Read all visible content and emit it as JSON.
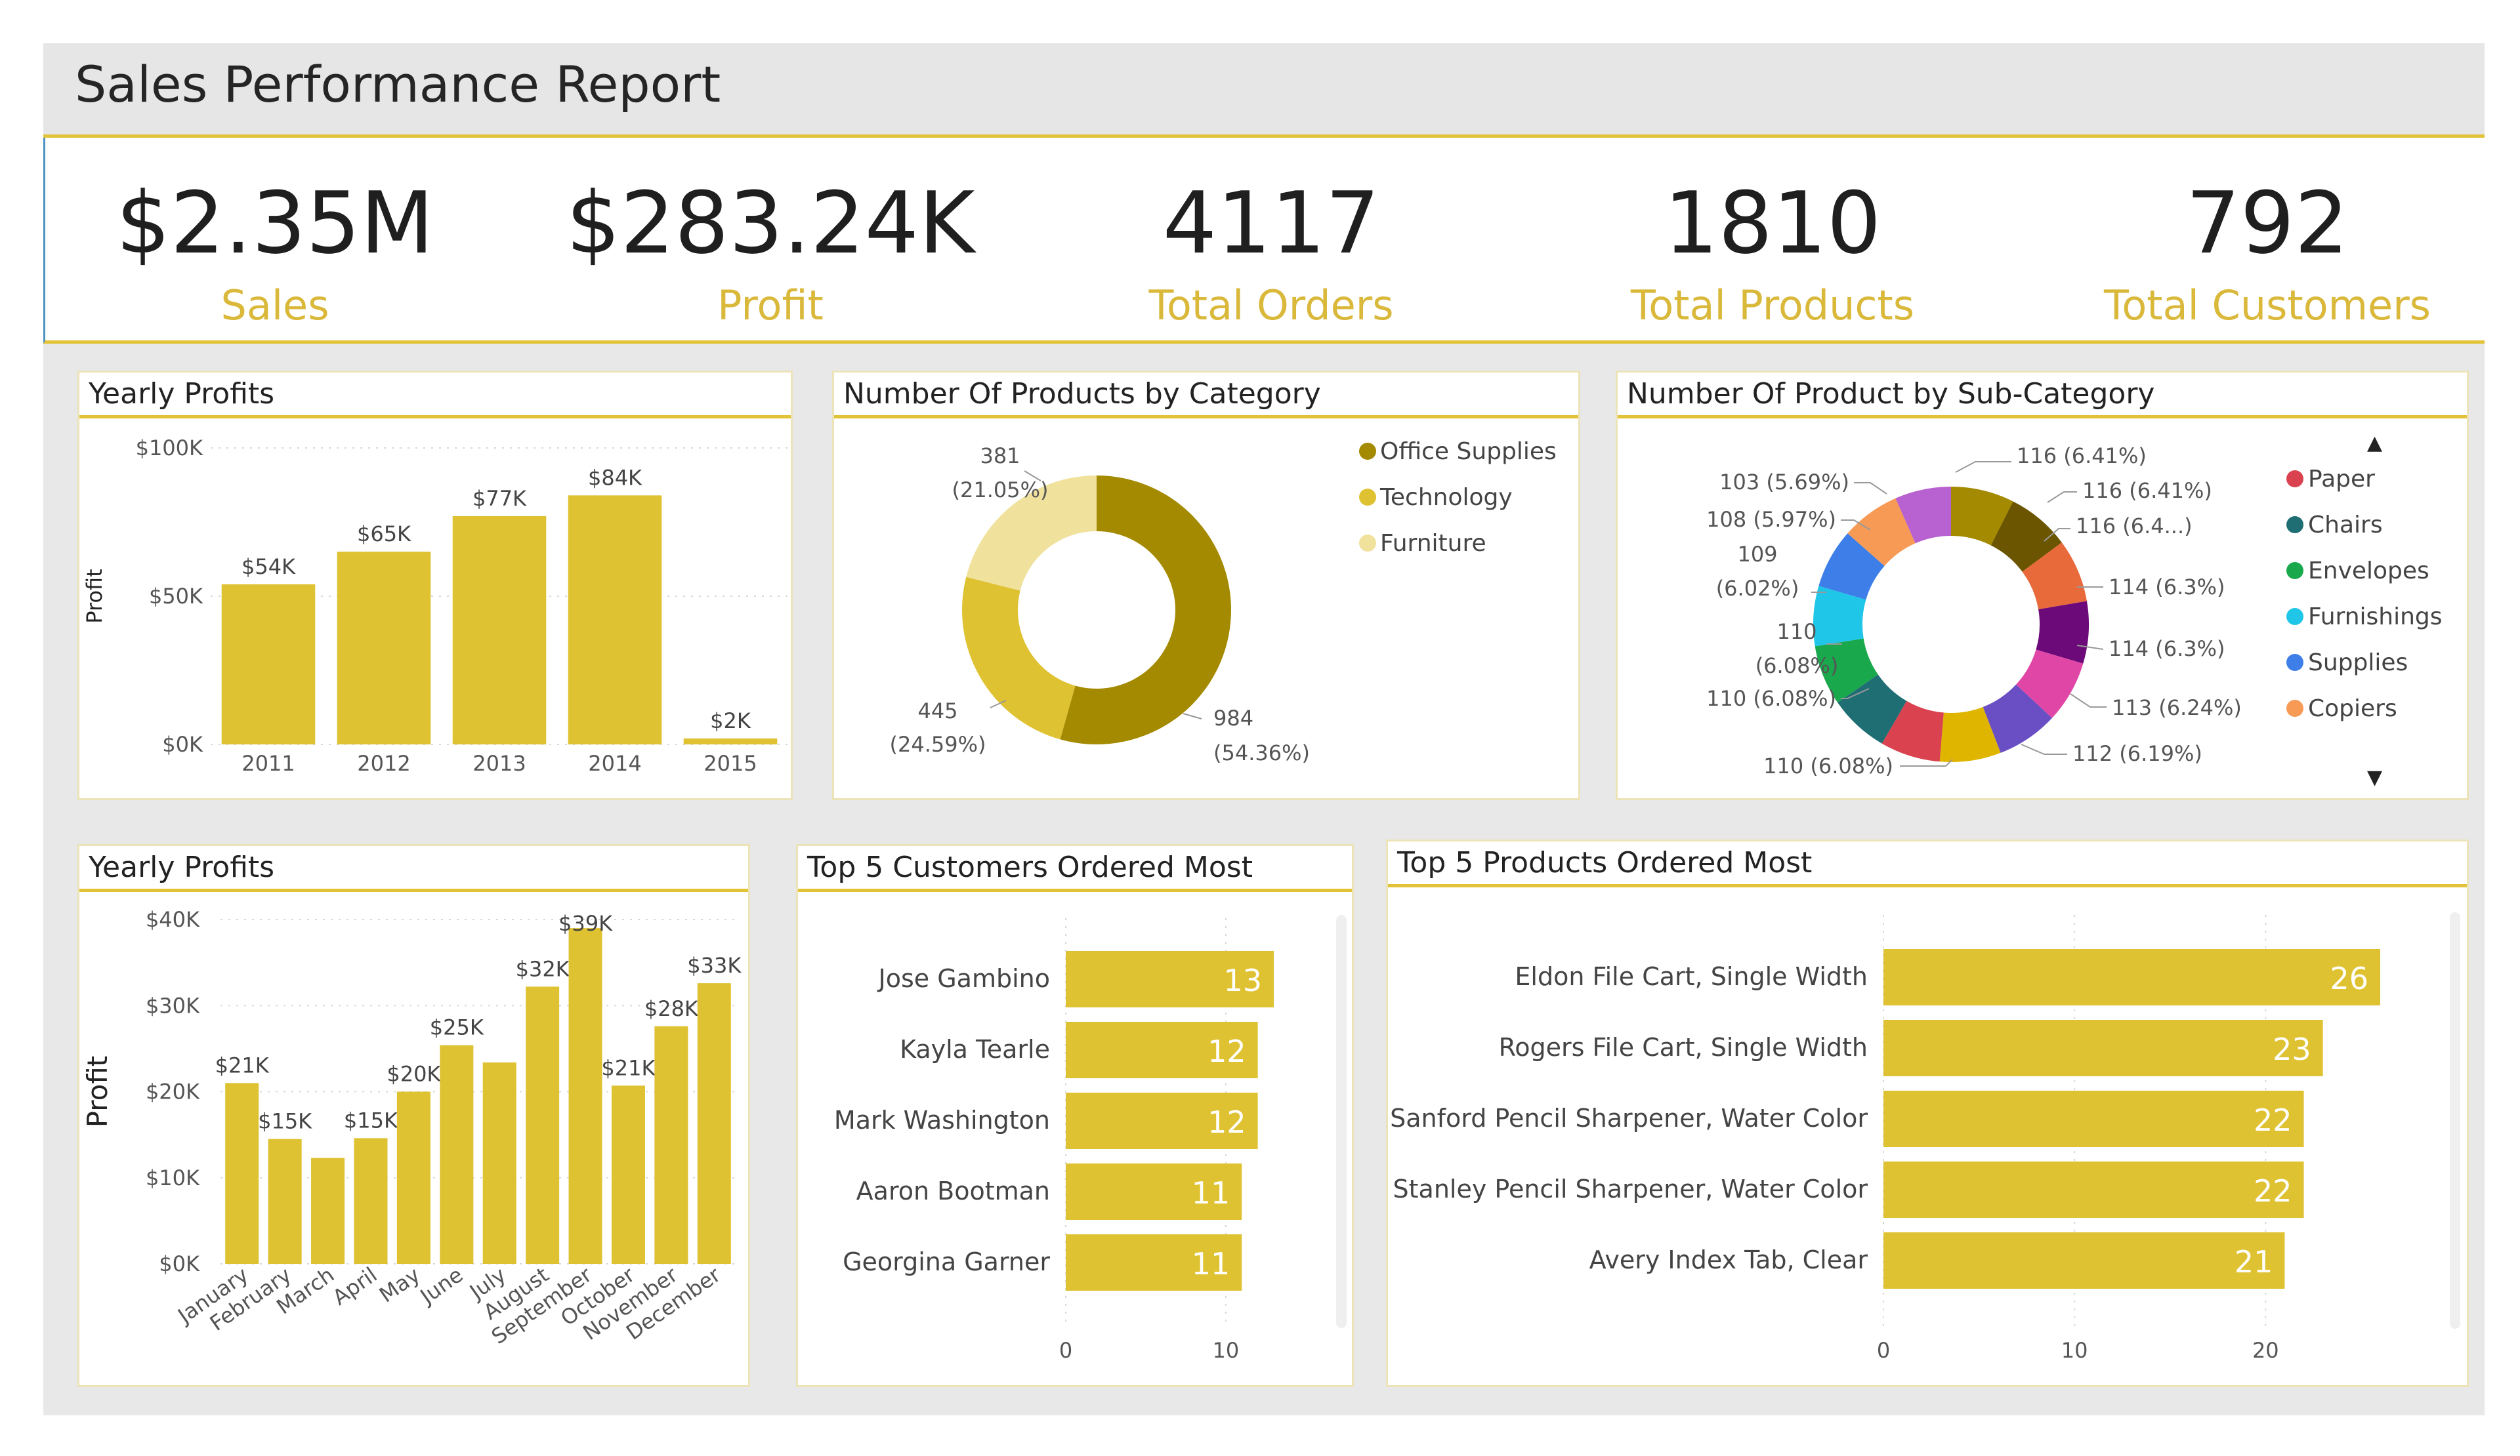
{
  "report_title": "Sales Performance Report",
  "kpis": [
    {
      "value": "$2.35M",
      "label": "Sales"
    },
    {
      "value": "$283.24K",
      "label": "Profit"
    },
    {
      "value": "4117",
      "label": "Total Orders"
    },
    {
      "value": "1810",
      "label": "Total Products"
    },
    {
      "value": "792",
      "label": "Total Customers"
    }
  ],
  "colors": {
    "gold": "#dfc232",
    "dark_gold": "#a48a00",
    "light_gold": "#f0e29c",
    "accent_line": "#e2c337"
  },
  "panels": {
    "yearly_title": "Yearly Profits",
    "category_title": "Number Of Products by Category",
    "subcat_title": "Number Of Product by Sub-Category",
    "monthly_title": "Yearly Profits",
    "customers_title": "Top 5 Customers Ordered Most",
    "products_title": "Top 5 Products Ordered Most"
  },
  "chart_data": [
    {
      "id": "yearly",
      "type": "bar",
      "title": "Yearly Profits",
      "categories": [
        "2011",
        "2012",
        "2013",
        "2014",
        "2015"
      ],
      "values": [
        54,
        65,
        77,
        84,
        2
      ],
      "data_labels": [
        "$54K",
        "$65K",
        "$77K",
        "$84K",
        "$2K"
      ],
      "ylabel": "Profit",
      "yticks": [
        "$0K",
        "$50K",
        "$100K"
      ],
      "ytick_values": [
        0,
        50,
        100
      ],
      "ylim": [
        0,
        100
      ]
    },
    {
      "id": "category",
      "type": "pie",
      "title": "Number Of Products by Category",
      "labels": [
        "Office Supplies",
        "Technology",
        "Furniture"
      ],
      "values": [
        984,
        445,
        381
      ],
      "label_value": [
        "984",
        "445",
        "381"
      ],
      "label_pct": [
        "(54.36%)",
        "(24.59%)",
        "(21.05%)"
      ],
      "colors": [
        "#a48a00",
        "#dfc232",
        "#f0e29c"
      ],
      "legend": [
        "Office Supplies",
        "Technology",
        "Furniture"
      ]
    },
    {
      "id": "subcategory",
      "type": "pie",
      "title": "Number Of Product by Sub-Category",
      "values": [
        116,
        116,
        116,
        114,
        114,
        113,
        112,
        110,
        110,
        110,
        110,
        109,
        108,
        103
      ],
      "labels": [
        "116 (6.41%)",
        "116 (6.41%)",
        "116 (6.4...)",
        "114 (6.3%)",
        "114 (6.3%)",
        "113 (6.24%)",
        "112 (6.19%)",
        "110 (6.08%)",
        "",
        "110 (6.08%)",
        "110",
        "109",
        "108 (5.97%)",
        "103 (5.69%)"
      ],
      "label_second_lines": {
        "10": "(6.08%)",
        "11": "(6.02%)"
      },
      "colors": [
        "#a48a00",
        "#6b5500",
        "#e8693a",
        "#6c0a7a",
        "#e046a6",
        "#6a4fc4",
        "#dfb500",
        "#d9424e",
        "#1f6e73",
        "#1aa84c",
        "#1fc6e8",
        "#3d7ee8",
        "#f79a55",
        "#b861d0",
        "#ec68c8",
        "#b9a4ec"
      ],
      "legend": [
        "Paper",
        "Chairs",
        "Envelopes",
        "Furnishings",
        "Supplies",
        "Copiers"
      ],
      "legend_colors": [
        "#d9424e",
        "#1f6e73",
        "#1aa84c",
        "#1fc6e8",
        "#3d7ee8",
        "#f79a55"
      ]
    },
    {
      "id": "monthly",
      "type": "bar",
      "title": "Yearly Profits",
      "categories": [
        "January",
        "February",
        "March",
        "April",
        "May",
        "June",
        "July",
        "August",
        "September",
        "October",
        "November",
        "December"
      ],
      "values": [
        21,
        14.5,
        12.3,
        14.6,
        20,
        25.4,
        23.4,
        32.2,
        39,
        20.7,
        27.6,
        32.6
      ],
      "data_labels": [
        "$21K",
        "$15K",
        "",
        "$15K",
        "$20K",
        "$25K",
        "",
        "$32K",
        "$39K",
        "$21K",
        "$28K",
        "$33K"
      ],
      "ylabel": "Profit",
      "yticks": [
        "$0K",
        "$10K",
        "$20K",
        "$30K",
        "$40K"
      ],
      "ytick_values": [
        0,
        10,
        20,
        30,
        40
      ],
      "ylim": [
        0,
        40
      ]
    },
    {
      "id": "customers",
      "type": "bar",
      "orientation": "horizontal",
      "title": "Top 5 Customers Ordered Most",
      "categories": [
        "Jose Gambino",
        "Kayla Tearle",
        "Mark Washington",
        "Aaron Bootman",
        "Georgina Garner"
      ],
      "values": [
        13,
        12,
        12,
        11,
        11
      ],
      "data_labels": [
        "13",
        "12",
        "12",
        "11",
        "11"
      ],
      "xticks": [
        "0",
        "10"
      ],
      "xtick_values": [
        0,
        10
      ],
      "xlim": [
        0,
        13
      ]
    },
    {
      "id": "products",
      "type": "bar",
      "orientation": "horizontal",
      "title": "Top 5 Products Ordered Most",
      "categories": [
        "Eldon File Cart, Single Width",
        "Rogers File Cart, Single Width",
        "Sanford Pencil Sharpener, Water Color",
        "Stanley Pencil Sharpener, Water Color",
        "Avery Index Tab, Clear"
      ],
      "values": [
        26,
        23,
        22,
        22,
        21
      ],
      "data_labels": [
        "26",
        "23",
        "22",
        "22",
        "21"
      ],
      "xticks": [
        "0",
        "10",
        "20"
      ],
      "xtick_values": [
        0,
        10,
        20
      ],
      "xlim": [
        0,
        26
      ]
    }
  ]
}
